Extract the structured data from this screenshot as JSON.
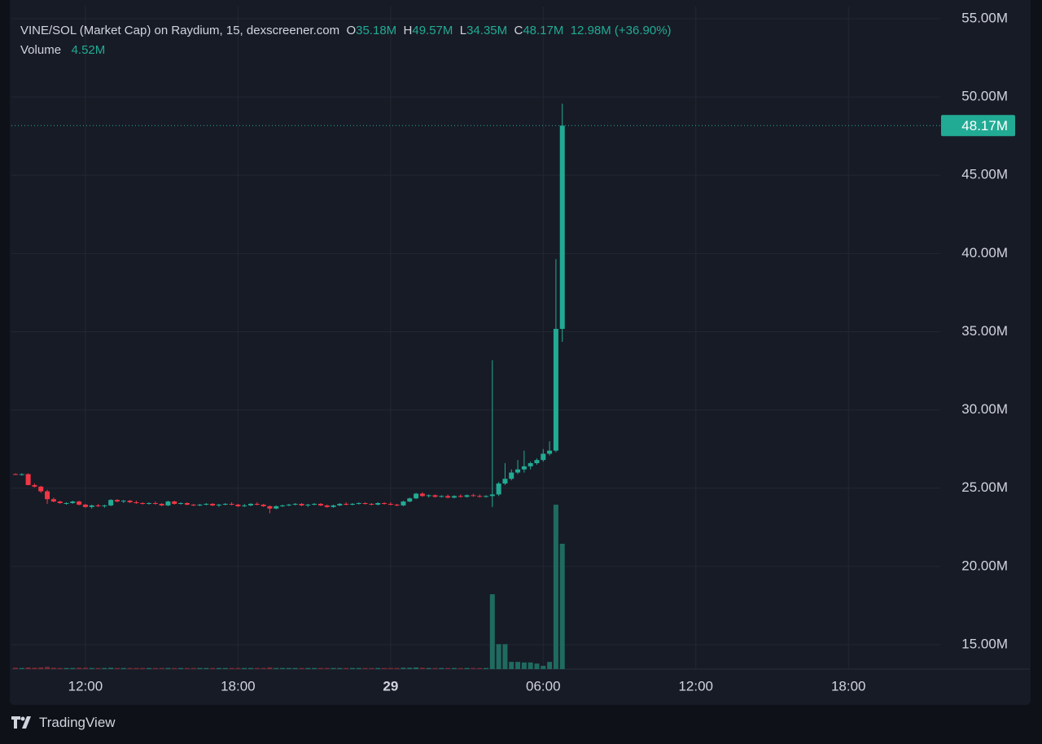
{
  "chart_data": {
    "type": "candlestick",
    "header": {
      "title": "VINE/SOL (Market Cap) on Raydium, 15, dexscreener.com",
      "o_label": "O",
      "o": "35.18M",
      "h_label": "H",
      "h": "49.57M",
      "l_label": "L",
      "l": "34.35M",
      "c_label": "C",
      "c": "48.17M",
      "change": "12.98M (+36.90%)",
      "volume_label": "Volume",
      "volume": "4.52M",
      "last_price_label": "48.17M"
    },
    "brand": "TradingView",
    "up_color": "#22ab94",
    "down_color": "#f23645",
    "up_volume_color": "#1f6b60",
    "down_volume_color": "#7a2a33",
    "grid": true,
    "xlim": [
      9.09,
      45.61
    ],
    "xticks": [
      {
        "value": 12,
        "label": "12:00"
      },
      {
        "value": 18,
        "label": "18:00"
      },
      {
        "value": 24,
        "label": "29"
      },
      {
        "value": 30,
        "label": "06:00"
      },
      {
        "value": 36,
        "label": "12:00"
      },
      {
        "value": 42,
        "label": "18:00"
      }
    ],
    "ylim": [
      13.44,
      55.78
    ],
    "yticks": [
      {
        "value": 15,
        "label": "15.00M"
      },
      {
        "value": 20,
        "label": "20.00M"
      },
      {
        "value": 25,
        "label": "25.00M"
      },
      {
        "value": 30,
        "label": "30.00M"
      },
      {
        "value": 35,
        "label": "35.00M"
      },
      {
        "value": 40,
        "label": "40.00M"
      },
      {
        "value": 45,
        "label": "45.00M"
      },
      {
        "value": 50,
        "label": "50.00M"
      },
      {
        "value": 55,
        "label": "55.00M"
      }
    ],
    "vlim": [
      0,
      23.89
    ],
    "x": [
      9.25,
      9.5,
      9.75,
      10,
      10.25,
      10.5,
      10.75,
      11,
      11.25,
      11.5,
      11.75,
      12,
      12.25,
      12.5,
      12.75,
      13,
      13.25,
      13.5,
      13.75,
      14,
      14.25,
      14.5,
      14.75,
      15,
      15.25,
      15.5,
      15.75,
      16,
      16.25,
      16.5,
      16.75,
      17,
      17.25,
      17.5,
      17.75,
      18,
      18.25,
      18.5,
      18.75,
      19,
      19.25,
      19.5,
      19.75,
      20,
      20.25,
      20.5,
      20.75,
      21,
      21.25,
      21.5,
      21.75,
      22,
      22.25,
      22.5,
      22.75,
      23,
      23.25,
      23.5,
      23.75,
      24,
      24.25,
      24.5,
      24.75,
      25,
      25.25,
      25.5,
      25.75,
      26,
      26.25,
      26.5,
      26.75,
      27,
      27.25,
      27.5,
      27.75,
      28,
      28.25,
      28.5,
      28.75,
      29,
      29.25,
      29.5,
      29.75,
      30,
      30.25,
      30.5,
      30.75
    ],
    "open": [
      25.9,
      25.88,
      25.9,
      25.2,
      25.1,
      24.8,
      24.3,
      24.15,
      24.05,
      24.05,
      24.15,
      23.95,
      23.8,
      23.9,
      23.85,
      23.9,
      24.25,
      24.15,
      24.2,
      24.1,
      24.05,
      24.0,
      24.05,
      24.0,
      23.9,
      24.15,
      24.0,
      24.05,
      23.95,
      23.9,
      23.95,
      24.0,
      23.9,
      23.95,
      24.0,
      23.95,
      23.85,
      23.9,
      24.0,
      23.95,
      23.85,
      23.7,
      23.85,
      23.9,
      23.95,
      24.0,
      23.9,
      23.95,
      24.0,
      23.9,
      23.8,
      23.9,
      24.0,
      23.95,
      24.0,
      24.05,
      24.0,
      23.95,
      24.05,
      24.0,
      23.95,
      23.9,
      24.15,
      24.35,
      24.65,
      24.5,
      24.55,
      24.45,
      24.5,
      24.4,
      24.5,
      24.45,
      24.55,
      24.5,
      24.45,
      24.5,
      24.6,
      25.3,
      25.6,
      26.0,
      26.2,
      26.4,
      26.6,
      26.8,
      27.2,
      27.4,
      35.18
    ],
    "high": [
      25.95,
      25.95,
      25.95,
      25.3,
      25.15,
      24.9,
      24.4,
      24.2,
      24.1,
      24.2,
      24.2,
      24.0,
      23.95,
      24.0,
      23.95,
      24.3,
      24.3,
      24.25,
      24.25,
      24.2,
      24.1,
      24.1,
      24.15,
      24.05,
      24.2,
      24.2,
      24.1,
      24.1,
      24.0,
      24.0,
      24.05,
      24.05,
      24.0,
      24.05,
      24.1,
      24.0,
      24.0,
      24.05,
      24.1,
      24.0,
      23.9,
      23.9,
      23.95,
      24.0,
      24.05,
      24.05,
      24.0,
      24.05,
      24.05,
      23.95,
      23.95,
      24.05,
      24.1,
      24.05,
      24.1,
      24.1,
      24.05,
      24.1,
      24.1,
      24.1,
      24.0,
      24.2,
      24.4,
      24.7,
      24.75,
      24.6,
      24.6,
      24.55,
      24.6,
      24.55,
      24.6,
      24.6,
      24.65,
      24.6,
      24.55,
      33.18,
      25.4,
      26.6,
      26.2,
      26.8,
      27.4,
      26.7,
      26.9,
      27.5,
      28.0,
      39.64,
      49.57
    ],
    "low": [
      25.85,
      25.8,
      25.2,
      25.05,
      24.7,
      24.0,
      24.1,
      24.0,
      23.95,
      24.0,
      23.9,
      23.75,
      23.7,
      23.8,
      23.75,
      23.85,
      24.1,
      24.05,
      24.05,
      24.0,
      23.95,
      23.95,
      23.95,
      23.85,
      23.85,
      23.95,
      23.95,
      23.9,
      23.85,
      23.85,
      23.9,
      23.85,
      23.8,
      23.9,
      23.9,
      23.8,
      23.8,
      23.85,
      23.9,
      23.8,
      23.4,
      23.65,
      23.8,
      23.85,
      23.9,
      23.85,
      23.8,
      23.9,
      23.85,
      23.75,
      23.75,
      23.85,
      23.9,
      23.9,
      23.95,
      23.95,
      23.9,
      23.9,
      23.95,
      23.9,
      23.85,
      23.85,
      24.1,
      24.3,
      24.45,
      24.4,
      24.4,
      24.4,
      24.35,
      24.35,
      24.4,
      24.4,
      24.45,
      24.4,
      24.4,
      23.8,
      24.5,
      25.2,
      25.5,
      25.9,
      26.0,
      26.2,
      26.5,
      26.7,
      27.1,
      27.3,
      34.35
    ],
    "close": [
      25.88,
      25.9,
      25.2,
      25.1,
      24.8,
      24.3,
      24.15,
      24.05,
      24.05,
      24.15,
      23.95,
      23.8,
      23.9,
      23.85,
      23.9,
      24.25,
      24.15,
      24.2,
      24.1,
      24.05,
      24.0,
      24.05,
      24.0,
      23.9,
      24.15,
      24.0,
      24.05,
      23.95,
      23.9,
      23.95,
      24.0,
      23.9,
      23.95,
      24.0,
      23.95,
      23.85,
      23.9,
      24.0,
      23.95,
      23.85,
      23.7,
      23.85,
      23.9,
      23.95,
      24.0,
      23.9,
      23.95,
      24.0,
      23.9,
      23.8,
      23.9,
      24.0,
      23.95,
      24.0,
      24.05,
      24.0,
      23.95,
      24.05,
      24.0,
      23.95,
      23.9,
      24.15,
      24.35,
      24.65,
      24.5,
      24.55,
      24.45,
      24.5,
      24.4,
      24.5,
      24.45,
      24.55,
      24.5,
      24.45,
      24.5,
      24.6,
      25.3,
      25.6,
      26.0,
      26.2,
      26.4,
      26.6,
      26.8,
      27.2,
      27.4,
      35.18,
      48.17
    ],
    "volume": [
      0.05,
      0.04,
      0.06,
      0.05,
      0.06,
      0.08,
      0.05,
      0.04,
      0.04,
      0.04,
      0.05,
      0.05,
      0.04,
      0.04,
      0.04,
      0.05,
      0.04,
      0.04,
      0.04,
      0.04,
      0.04,
      0.04,
      0.04,
      0.04,
      0.04,
      0.04,
      0.04,
      0.04,
      0.04,
      0.04,
      0.04,
      0.04,
      0.04,
      0.04,
      0.04,
      0.04,
      0.04,
      0.04,
      0.04,
      0.04,
      0.06,
      0.04,
      0.04,
      0.04,
      0.04,
      0.04,
      0.04,
      0.04,
      0.04,
      0.04,
      0.04,
      0.04,
      0.04,
      0.04,
      0.04,
      0.04,
      0.04,
      0.04,
      0.04,
      0.04,
      0.04,
      0.05,
      0.05,
      0.06,
      0.05,
      0.04,
      0.04,
      0.04,
      0.04,
      0.04,
      0.04,
      0.04,
      0.04,
      0.04,
      0.04,
      2.7,
      0.9,
      0.9,
      0.26,
      0.26,
      0.24,
      0.24,
      0.2,
      0.12,
      0.26,
      5.93,
      4.52
    ]
  }
}
